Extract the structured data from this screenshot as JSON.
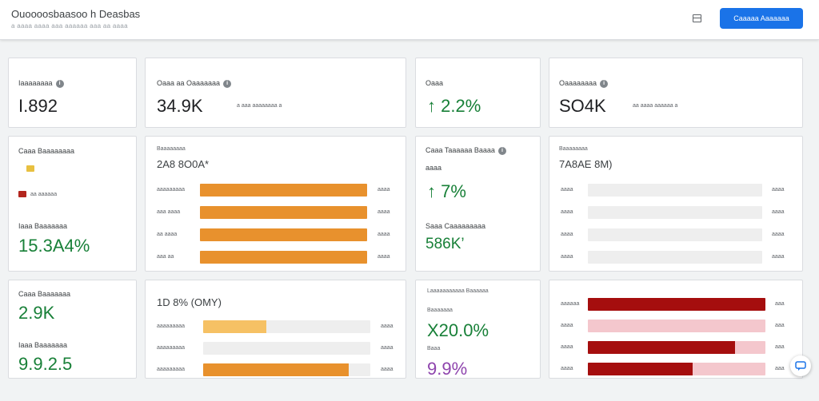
{
  "header": {
    "title": "Ouoooosbaasoo h Deasbas",
    "subtitle": "a aaaa aaaa aaa aaaaaa aaa aa aaaa",
    "layout_icon": "layout-icon",
    "primary_button": "Caaaaa Aaaaaaa"
  },
  "colors": {
    "accent_blue": "#1a73e8",
    "positive_green": "#188038",
    "orange_bar": "#e8912d",
    "light_orange_bar": "#f6c164",
    "dark_red_bar": "#a50e0e",
    "pink_track": "#f4c7cd",
    "purple_text": "#8e44ad"
  },
  "kpis": [
    {
      "label": "Iaaaaaaaa",
      "value": "I.892",
      "note": ""
    },
    {
      "label": "Oaaa aa Oaaaaaaa",
      "value": "34.9K",
      "note": "a aaa aaaaaaaa a"
    },
    {
      "label": "Oaaa",
      "value": "2.2%",
      "arrow": "↑",
      "note": ""
    },
    {
      "label": "Oaaaaaaaa",
      "value": "SO4K",
      "note": "aa aaaa aaaaaa a"
    }
  ],
  "card_a": {
    "title": "Caaa Baaaaaaaa",
    "legend": [
      {
        "color": "#e8c040",
        "text": ""
      },
      {
        "color": "#b3261e",
        "text": "aa aaaaaa"
      }
    ],
    "footer_label": "Iaaa Baaaaaaa",
    "footer_value": "15.3A4%"
  },
  "card_b": {
    "header_label": "Baaaaaaaa",
    "heading": "2A8 8O0A*",
    "bars": [
      {
        "label": "aaaaaaaaa",
        "fraction": 1.0,
        "value": "aaaa"
      },
      {
        "label": "aaa aaaa",
        "fraction": 1.0,
        "value": "aaaa"
      },
      {
        "label": "aa aaaa",
        "fraction": 1.0,
        "value": "aaaa"
      },
      {
        "label": "aaa aa",
        "fraction": 1.0,
        "value": "aaaa"
      }
    ]
  },
  "card_c": {
    "title": "Caaa Taaaaaa Baaaa",
    "small_value": "aaaa",
    "value": "7%",
    "arrow": "↑",
    "sub_label": "Saaa Caaaaaaaaa",
    "sub_value": "586K’"
  },
  "card_d": {
    "header_label": "Baaaaaaaa",
    "heading": "7A8AE 8M)",
    "bars": [
      {
        "label": "aaaa",
        "fraction": 0.0,
        "value": "aaaa"
      },
      {
        "label": "aaaa",
        "fraction": 0.0,
        "value": "aaaa"
      },
      {
        "label": "aaaa",
        "fraction": 0.0,
        "value": "aaaa"
      },
      {
        "label": "aaaa",
        "fraction": 0.0,
        "value": "aaaa"
      }
    ]
  },
  "card_e": {
    "label1": "Caaa Baaaaaaa",
    "value1": "2.9K",
    "label2": "Iaaa Baaaaaaa",
    "value2": "9.9.2.5"
  },
  "card_f": {
    "heading": "1D 8% (OMY)",
    "bars": [
      {
        "label": "aaaaaaaaa",
        "fraction": 0.38,
        "value": "aaaa"
      },
      {
        "label": "aaaaaaaaa",
        "fraction": 0.0,
        "value": "aaaa"
      },
      {
        "label": "aaaaaaaaa",
        "fraction": 0.87,
        "value": "aaaa"
      }
    ]
  },
  "card_g": {
    "title": "Laaaaaaaaaaa Baaaaaa",
    "label1": "Baaaaaaa",
    "value1": "X20.0%",
    "label2": "Baaa",
    "value2": "9.9%"
  },
  "card_h": {
    "bars": [
      {
        "label": "aaaaaa",
        "fraction": 1.0,
        "value": "aaa"
      },
      {
        "label": "aaaa",
        "fraction": 0.0,
        "value": "aaa"
      },
      {
        "label": "aaaa",
        "fraction": 0.83,
        "value": "aaa"
      },
      {
        "label": "aaaa",
        "fraction": 0.59,
        "value": "aaa"
      }
    ]
  },
  "fab_icon": "chat-icon"
}
